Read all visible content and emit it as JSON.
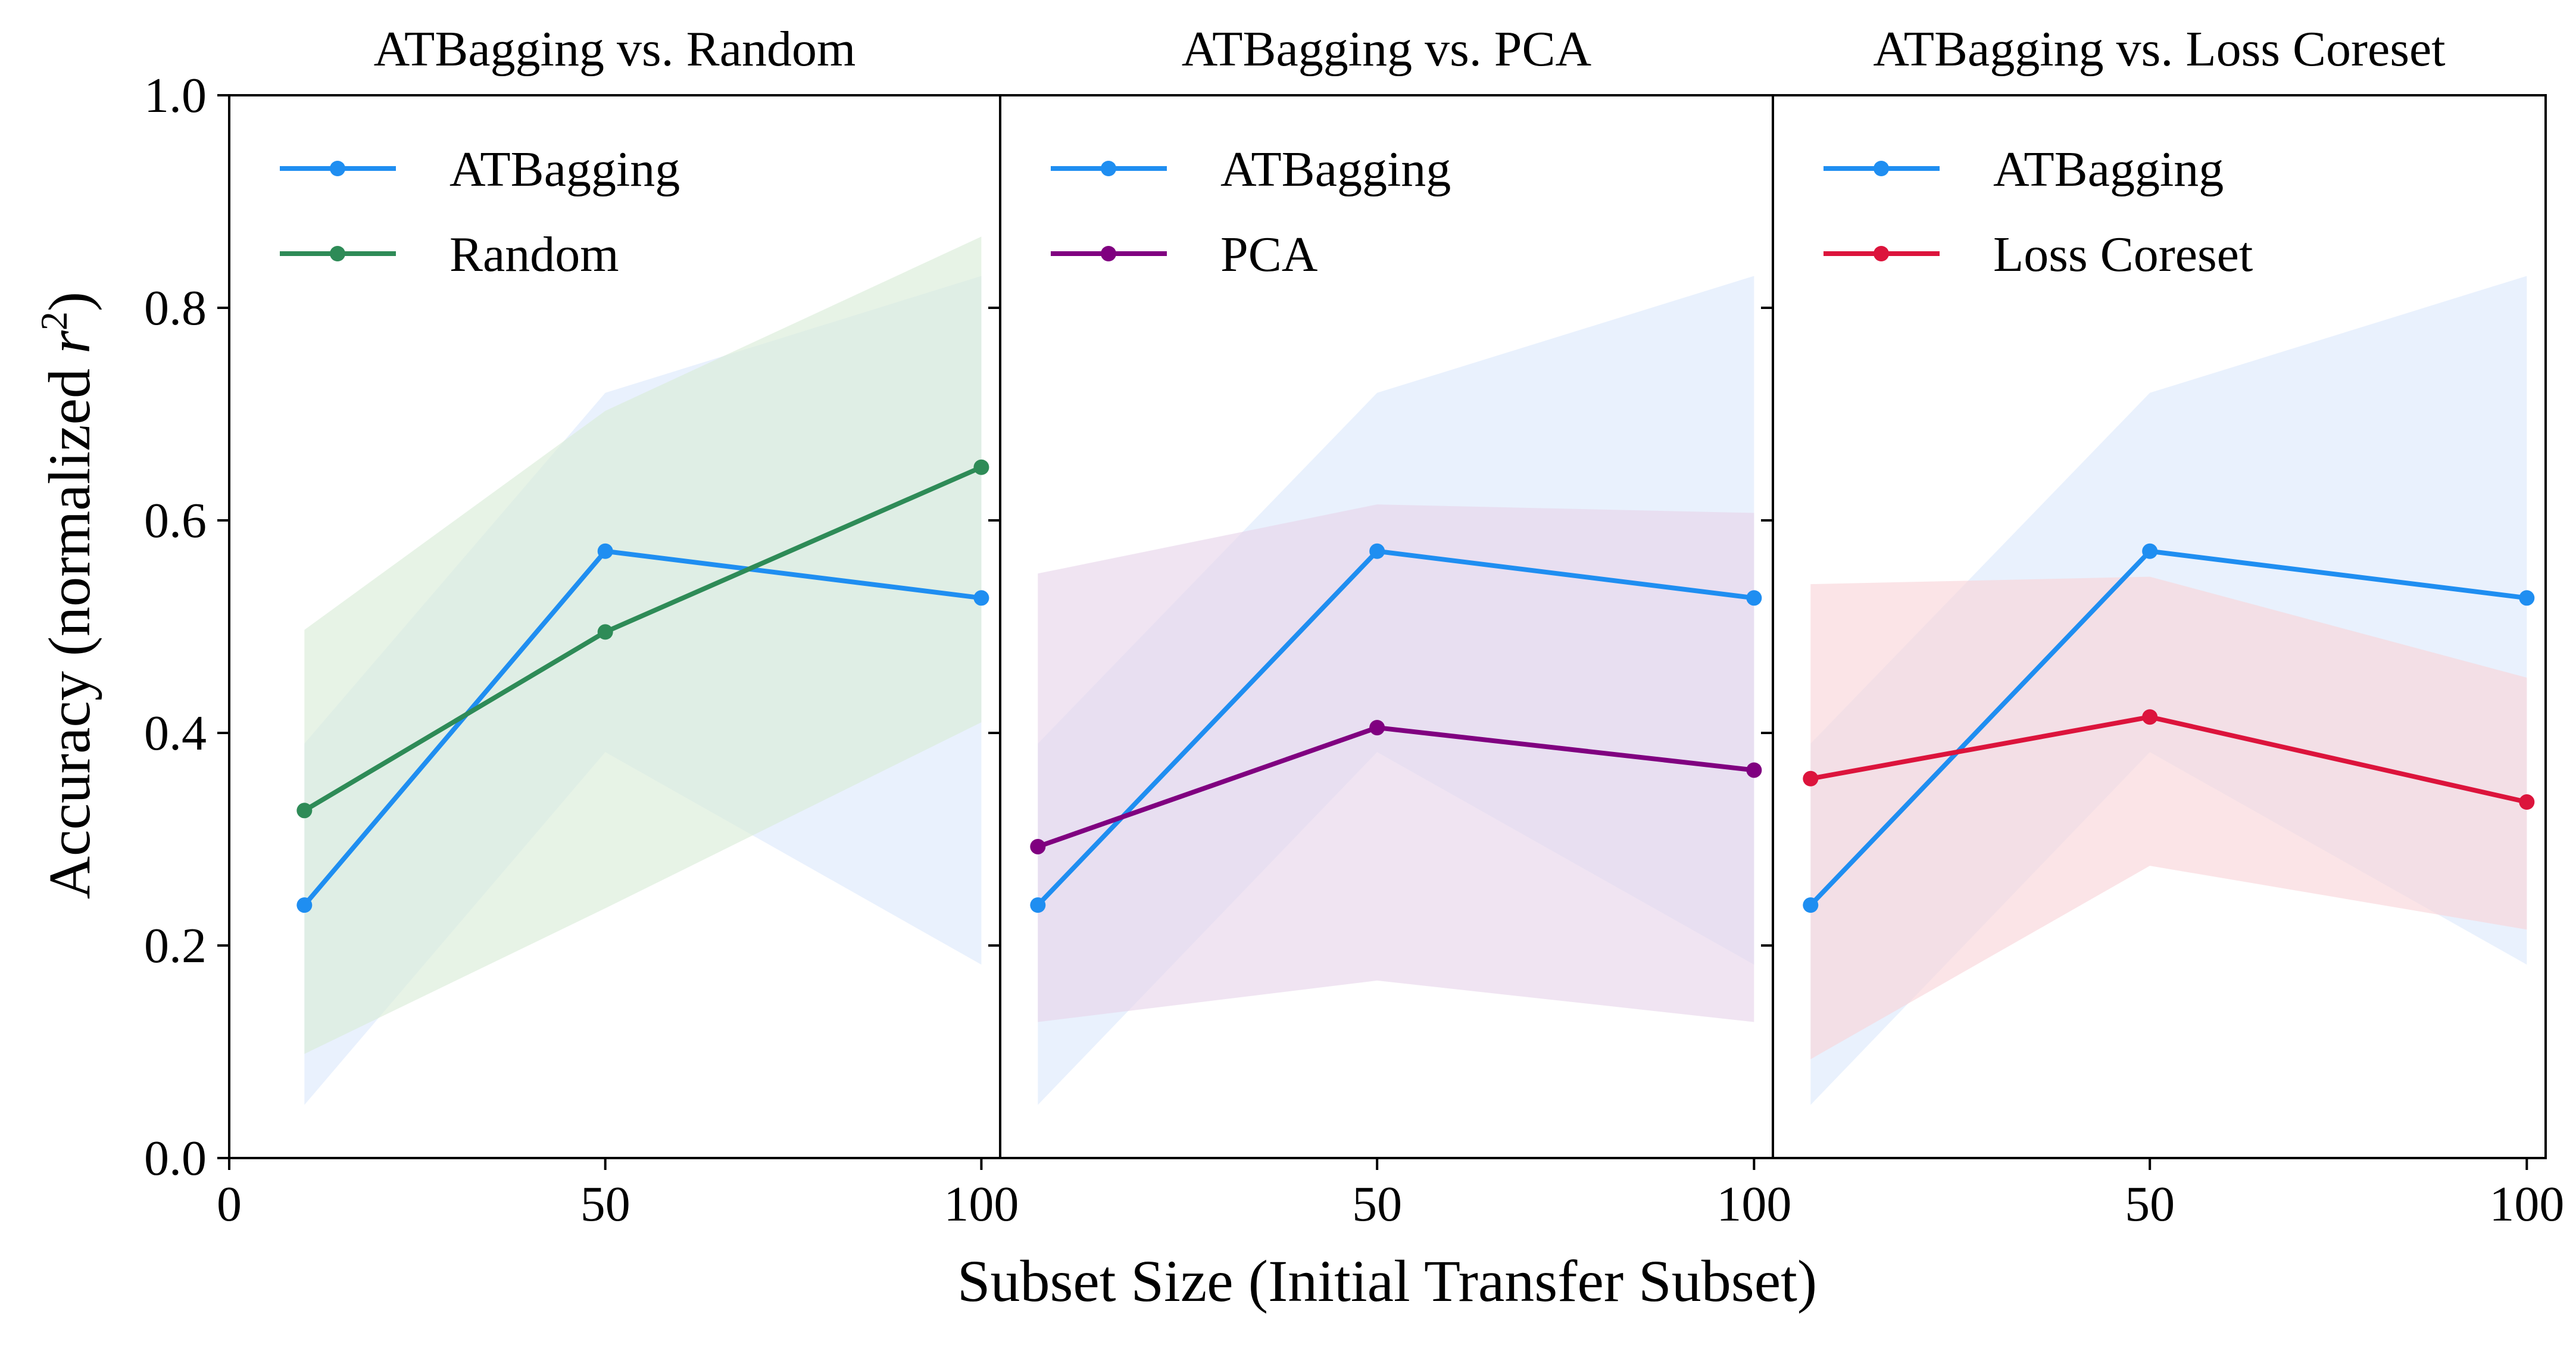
{
  "figure": {
    "xlabel": "Subset Size (Initial Transfer Subset)",
    "ylabel_main": "Accuracy (normalized ",
    "ylabel_var": "r",
    "ylabel_exp": "2",
    "ylabel_close": ")"
  },
  "chart_data": [
    {
      "type": "line",
      "title": "ATBagging vs. Random",
      "xlim": [
        0,
        102.5
      ],
      "ylim": [
        0.0,
        1.0
      ],
      "xticks": [
        0,
        50,
        100
      ],
      "xtick_labels": [
        "0",
        "50",
        "100"
      ],
      "yticks": [
        0.0,
        0.2,
        0.4,
        0.6,
        0.8,
        1.0
      ],
      "ytick_labels": [
        "0.0",
        "0.2",
        "0.4",
        "0.6",
        "0.8",
        "1.0"
      ],
      "legend_loc": "upper-left",
      "series": [
        {
          "name": "ATBagging",
          "color": "#1f8ef1",
          "band_color": "#dbe9fb",
          "x": [
            10,
            50,
            100
          ],
          "y": [
            0.238,
            0.571,
            0.527
          ],
          "lower": [
            0.05,
            0.382,
            0.182
          ],
          "upper": [
            0.39,
            0.72,
            0.83
          ]
        },
        {
          "name": "Random",
          "color": "#2e8b57",
          "band_color": "#d8ebd6",
          "x": [
            10,
            50,
            100
          ],
          "y": [
            0.327,
            0.495,
            0.65
          ],
          "lower": [
            0.098,
            0.235,
            0.41
          ],
          "upper": [
            0.497,
            0.703,
            0.867
          ]
        }
      ]
    },
    {
      "type": "line",
      "title": "ATBagging vs. PCA",
      "xlim": [
        0,
        102.5
      ],
      "ylim": [
        0.0,
        1.0
      ],
      "xticks": [
        50,
        100
      ],
      "xtick_labels": [
        "50",
        "100"
      ],
      "legend_loc": "upper-left",
      "series": [
        {
          "name": "ATBagging",
          "color": "#1f8ef1",
          "band_color": "#dbe9fb",
          "x": [
            5,
            50,
            100
          ],
          "y": [
            0.238,
            0.571,
            0.527
          ],
          "lower": [
            0.05,
            0.382,
            0.182
          ],
          "upper": [
            0.39,
            0.72,
            0.83
          ]
        },
        {
          "name": "PCA",
          "color": "#800080",
          "band_color": "#e6d3ea",
          "x": [
            5,
            50,
            100
          ],
          "y": [
            0.293,
            0.405,
            0.365
          ],
          "lower": [
            0.128,
            0.167,
            0.128
          ],
          "upper": [
            0.55,
            0.615,
            0.607
          ]
        }
      ]
    },
    {
      "type": "line",
      "title": "ATBagging vs. Loss Coreset",
      "xlim": [
        0,
        102.5
      ],
      "ylim": [
        0.0,
        1.0
      ],
      "xticks": [
        50,
        100
      ],
      "xtick_labels": [
        "50",
        "100"
      ],
      "legend_loc": "upper-left",
      "series": [
        {
          "name": "ATBagging",
          "color": "#1f8ef1",
          "band_color": "#dbe9fb",
          "x": [
            5,
            50,
            100
          ],
          "y": [
            0.238,
            0.571,
            0.527
          ],
          "lower": [
            0.05,
            0.382,
            0.182
          ],
          "upper": [
            0.39,
            0.72,
            0.83
          ]
        },
        {
          "name": "Loss Coreset",
          "color": "#dc143c",
          "band_color": "#f8d3d8",
          "x": [
            5,
            50,
            100
          ],
          "y": [
            0.357,
            0.415,
            0.335
          ],
          "lower": [
            0.093,
            0.275,
            0.215
          ],
          "upper": [
            0.54,
            0.547,
            0.452
          ]
        }
      ]
    }
  ]
}
